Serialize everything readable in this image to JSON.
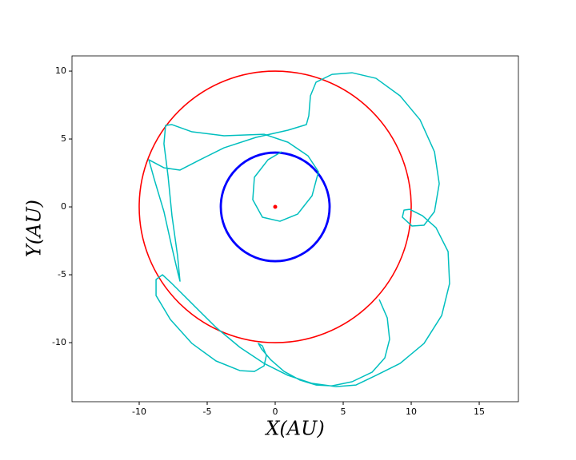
{
  "chart_data": {
    "type": "line",
    "xlabel": "X(AU)",
    "ylabel": "Y(AU)",
    "xlim": [
      -14.94,
      17.88
    ],
    "ylim": [
      -14.35,
      11.12
    ],
    "xticks": [
      -10,
      -5,
      0,
      5,
      10,
      15
    ],
    "yticks": [
      -10,
      -5,
      0,
      5,
      10
    ],
    "circles": [
      {
        "radius": 10,
        "color": "#ff0000",
        "width": 1.6
      },
      {
        "radius": 4,
        "color": "#0000ff",
        "width": 2.8
      }
    ],
    "points": [
      {
        "x": 0,
        "y": 0,
        "color": "#ff0000"
      }
    ],
    "series": [
      {
        "color": "#00bfbf",
        "x": [
          7.65,
          8.24,
          8.41,
          8.06,
          7.12,
          5.65,
          4.18,
          3.0,
          1.82,
          0.65,
          -0.35,
          -1.0,
          -1.24,
          -0.94,
          -0.65,
          -0.82,
          -1.53,
          -2.59,
          -4.35,
          -6.12,
          -7.71,
          -8.76,
          -8.76,
          -8.29,
          -7.59,
          -6.12,
          -4.35,
          -2.59,
          -0.82,
          0.94,
          2.71,
          4.47,
          5.94,
          7.41,
          9.18,
          10.94,
          12.24,
          12.82,
          12.71,
          11.82,
          10.82,
          9.88,
          9.47,
          9.35,
          10.06,
          10.94,
          11.71,
          12.06,
          11.71,
          10.65,
          9.18,
          7.41,
          5.65,
          4.18,
          3.0,
          2.59,
          2.47,
          2.29,
          0.94,
          -1.41,
          -3.76,
          -5.53,
          -7.0,
          -8.18,
          -9.29,
          -8.88,
          -8.18,
          -7.59,
          -7.18,
          -7.0,
          -7.18,
          -7.59,
          -7.88,
          -8.18,
          -8.06,
          -7.59,
          -6.12,
          -3.76,
          -0.82,
          0.94,
          2.41,
          3.18,
          2.71,
          1.65,
          0.35,
          -0.94,
          -1.65,
          -1.53,
          -0.53,
          0.47
        ],
        "y": [
          -6.82,
          -8.18,
          -9.76,
          -11.12,
          -12.18,
          -12.88,
          -13.18,
          -13.12,
          -12.76,
          -12.12,
          -11.24,
          -10.47,
          -10.06,
          -10.24,
          -10.94,
          -11.71,
          -12.12,
          -12.06,
          -11.35,
          -10.06,
          -8.29,
          -6.53,
          -5.35,
          -5.0,
          -5.65,
          -7.12,
          -8.88,
          -10.35,
          -11.53,
          -12.41,
          -13.0,
          -13.24,
          -13.12,
          -12.41,
          -11.53,
          -10.06,
          -8.0,
          -5.65,
          -3.29,
          -1.53,
          -0.65,
          -0.18,
          -0.24,
          -0.76,
          -1.41,
          -1.35,
          -0.35,
          1.71,
          4.06,
          6.41,
          8.18,
          9.47,
          9.88,
          9.76,
          9.18,
          8.18,
          6.71,
          6.06,
          5.65,
          5.12,
          4.35,
          3.47,
          2.71,
          2.88,
          3.47,
          2.0,
          -0.35,
          -3.0,
          -4.76,
          -5.47,
          -3.59,
          -0.65,
          2.29,
          4.65,
          6.0,
          6.06,
          5.53,
          5.24,
          5.35,
          4.76,
          3.76,
          2.59,
          0.82,
          -0.53,
          -1.06,
          -0.76,
          0.53,
          2.18,
          3.47,
          4.06
        ]
      }
    ]
  }
}
